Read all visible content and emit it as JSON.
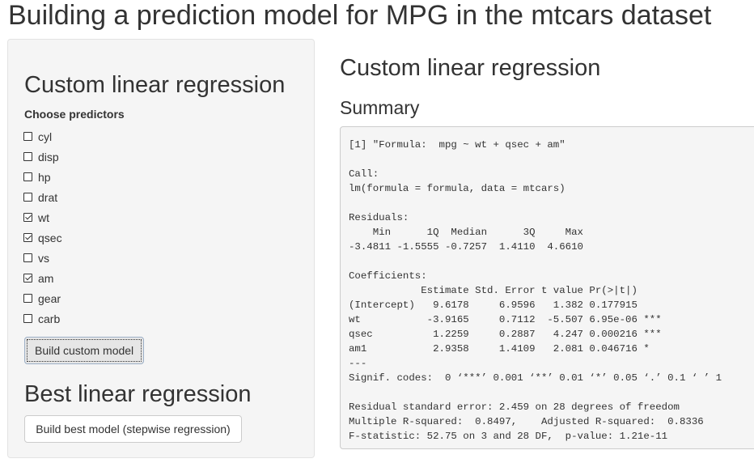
{
  "page": {
    "title": "Building a prediction model for MPG in the mtcars dataset"
  },
  "sidebar": {
    "custom_title": "Custom linear regression",
    "choose_label": "Choose predictors",
    "predictors": [
      {
        "label": "cyl",
        "checked": false
      },
      {
        "label": "disp",
        "checked": false
      },
      {
        "label": "hp",
        "checked": false
      },
      {
        "label": "drat",
        "checked": false
      },
      {
        "label": "wt",
        "checked": true
      },
      {
        "label": "qsec",
        "checked": true
      },
      {
        "label": "vs",
        "checked": false
      },
      {
        "label": "am",
        "checked": true
      },
      {
        "label": "gear",
        "checked": false
      },
      {
        "label": "carb",
        "checked": false
      }
    ],
    "build_custom_label": "Build custom model",
    "best_title": "Best linear regression",
    "build_best_label": "Build best model (stepwise regression)"
  },
  "main": {
    "title": "Custom linear regression",
    "summary_title": "Summary",
    "output_text": "[1] \"Formula:  mpg ~ wt + qsec + am\"\n\nCall:\nlm(formula = formula, data = mtcars)\n\nResiduals:\n    Min      1Q  Median      3Q     Max \n-3.4811 -1.5555 -0.7257  1.4110  4.6610 \n\nCoefficients:\n            Estimate Std. Error t value Pr(>|t|)    \n(Intercept)   9.6178     6.9596   1.382 0.177915    \nwt           -3.9165     0.7112  -5.507 6.95e-06 ***\nqsec          1.2259     0.2887   4.247 0.000216 ***\nam1           2.9358     1.4109   2.081 0.046716 *  \n---\nSignif. codes:  0 ‘***’ 0.001 ‘**’ 0.01 ‘*’ 0.05 ‘.’ 0.1 ‘ ’ 1\n\nResidual standard error: 2.459 on 28 degrees of freedom\nMultiple R-squared:  0.8497,\tAdjusted R-squared:  0.8336 \nF-statistic: 52.75 on 3 and 28 DF,  p-value: 1.21e-11"
  }
}
